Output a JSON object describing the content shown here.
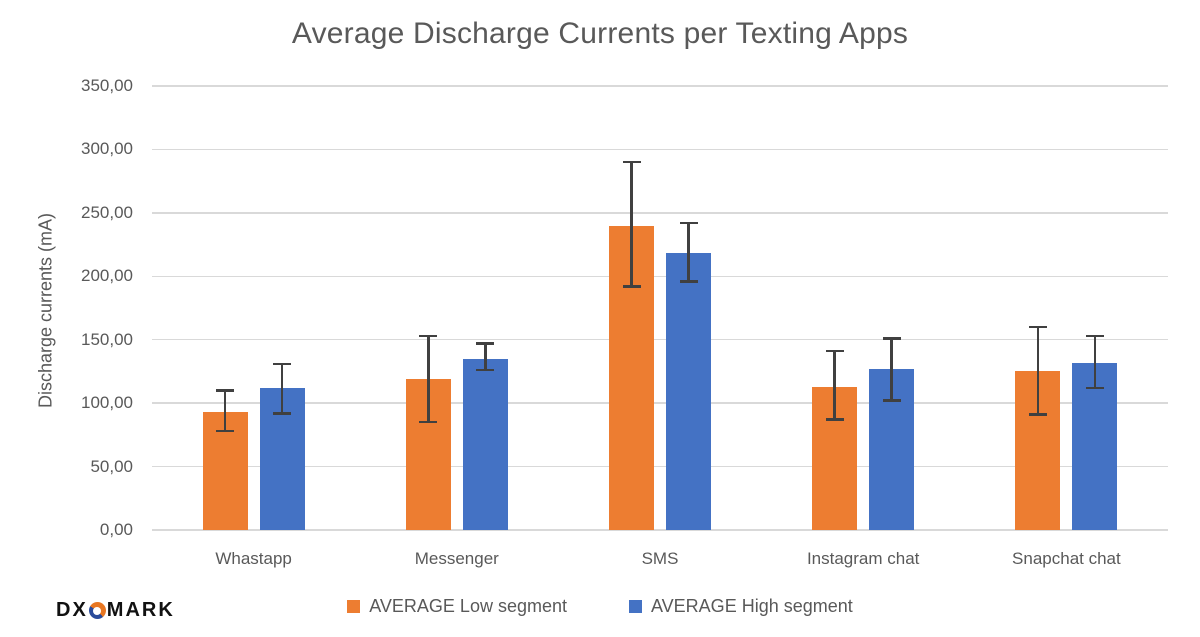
{
  "chart_data": {
    "type": "bar",
    "title": "Average Discharge Currents per Texting Apps",
    "ylabel": "Discharge currents (mA)",
    "xlabel": "",
    "categories": [
      "Whastapp",
      "Messenger",
      "SMS",
      "Instagram chat",
      "Snapchat chat"
    ],
    "series": [
      {
        "name": "AVERAGE Low segment",
        "color": "#ED7D31",
        "values": [
          93,
          119,
          240,
          113,
          125
        ],
        "error_low": [
          78,
          85,
          192,
          87,
          91
        ],
        "error_high": [
          110,
          153,
          290,
          141,
          160
        ]
      },
      {
        "name": "AVERAGE High segment",
        "color": "#4472C4",
        "values": [
          112,
          135,
          218,
          127,
          132
        ],
        "error_low": [
          92,
          126,
          196,
          102,
          112
        ],
        "error_high": [
          131,
          147,
          242,
          151,
          153
        ]
      }
    ],
    "ylim": [
      0,
      350
    ],
    "ytick_step": 50,
    "ytick_labels": [
      "350,00",
      "300,00",
      "250,00",
      "200,00",
      "150,00",
      "100,00",
      "50,00",
      "0,00"
    ],
    "grid": true,
    "legend_position": "bottom",
    "colors": {
      "text": "#595959",
      "gridline": "#d9d9d9",
      "error_bar": "#404040",
      "background": "#ffffff"
    }
  },
  "branding": {
    "logo_part1": "DX",
    "logo_part2": "MARK"
  }
}
